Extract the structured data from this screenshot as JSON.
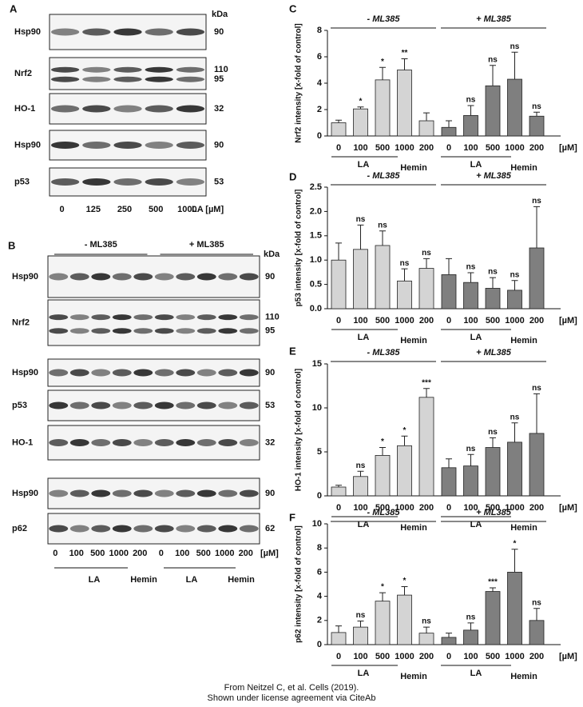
{
  "blots": [
    {
      "panel": "A",
      "kda": "kDa",
      "rows": [
        {
          "label": "Hsp90",
          "kda": [
            "90"
          ]
        },
        {
          "label": "Nrf2",
          "kda": [
            "110",
            "95"
          ]
        },
        {
          "label": "HO-1",
          "kda": [
            "32"
          ]
        },
        {
          "label": "Hsp90",
          "kda": [
            "90"
          ]
        },
        {
          "label": "p53",
          "kda": [
            "53"
          ]
        }
      ],
      "lanes": [
        "0",
        "125",
        "250",
        "500",
        "1000"
      ],
      "unit": "LA [µM]"
    },
    {
      "panel": "B",
      "kda": "kDa",
      "groups": [
        "- ML385",
        "+ ML385"
      ],
      "rows": [
        {
          "label": "Hsp90",
          "kda": [
            "90"
          ]
        },
        {
          "label": "Nrf2",
          "kda": [
            "110",
            "95"
          ]
        },
        {
          "label": "Hsp90",
          "kda": [
            "90"
          ]
        },
        {
          "label": "p53",
          "kda": [
            "53"
          ]
        },
        {
          "label": "HO-1",
          "kda": [
            "32"
          ]
        },
        {
          "label": "Hsp90",
          "kda": [
            "90"
          ]
        },
        {
          "label": "p62",
          "kda": [
            "62"
          ]
        }
      ],
      "lanes": [
        "0",
        "100",
        "500",
        "1000",
        "200",
        "0",
        "100",
        "500",
        "1000",
        "200"
      ],
      "unit": "[µM]",
      "x_groups": [
        "LA",
        "Hemin",
        "LA",
        "Hemin"
      ]
    }
  ],
  "chart_data": [
    {
      "type": "bar",
      "panel": "C",
      "ylabel": "Nrf2 intensity [x-fold of control]",
      "ylim": [
        0,
        8
      ],
      "yticks": [
        0,
        2,
        4,
        6,
        8
      ],
      "categories": [
        "0",
        "100",
        "500",
        "1000",
        "200"
      ],
      "unit": "[µM]",
      "x_groups": [
        "LA",
        "Hemin",
        "LA",
        "Hemin"
      ],
      "series": [
        {
          "name": "- ML385",
          "color": "#d4d4d4",
          "values": [
            1.0,
            2.05,
            4.25,
            5.0,
            1.15
          ],
          "errors": [
            0.2,
            0.15,
            0.95,
            0.85,
            0.6
          ],
          "annotations": [
            null,
            "*",
            "*",
            "**",
            null
          ]
        },
        {
          "name": "+ ML385",
          "color": "#7f7f7f",
          "values": [
            0.65,
            1.55,
            3.8,
            4.3,
            1.5
          ],
          "errors": [
            0.5,
            0.75,
            1.55,
            2.05,
            0.3
          ],
          "annotations": [
            null,
            "ns",
            "ns",
            "ns",
            "ns"
          ]
        }
      ]
    },
    {
      "type": "bar",
      "panel": "D",
      "ylabel": "p53 intensity [x-fold of control]",
      "ylim": [
        0,
        2.5
      ],
      "yticks": [
        {
          "value": 0,
          "label": "0.0"
        },
        {
          "value": 0.5,
          "label": "0.5"
        },
        {
          "value": 1,
          "label": "1.0"
        },
        {
          "value": 1.5,
          "label": "1.5"
        },
        {
          "value": 2,
          "label": "2.0"
        },
        {
          "value": 2.5,
          "label": "2.5"
        }
      ],
      "categories": [
        "0",
        "100",
        "500",
        "1000",
        "200"
      ],
      "unit": "[µM]",
      "x_groups": [
        "LA",
        "Hemin",
        "LA",
        "Hemin"
      ],
      "series": [
        {
          "name": "- ML385",
          "color": "#d4d4d4",
          "values": [
            1.0,
            1.22,
            1.3,
            0.57,
            0.83
          ],
          "errors": [
            0.35,
            0.5,
            0.3,
            0.25,
            0.2
          ],
          "annotations": [
            null,
            "ns",
            "ns",
            "ns",
            "ns"
          ]
        },
        {
          "name": "+ ML385",
          "color": "#7f7f7f",
          "values": [
            0.7,
            0.54,
            0.42,
            0.38,
            1.25
          ],
          "errors": [
            0.33,
            0.2,
            0.22,
            0.2,
            0.85
          ],
          "annotations": [
            null,
            "ns",
            "ns",
            "ns",
            "ns"
          ]
        }
      ]
    },
    {
      "type": "bar",
      "panel": "E",
      "ylabel": "HO-1 intensity [x-fold of control]",
      "ylim": [
        0,
        15
      ],
      "yticks": [
        0,
        5,
        10,
        15
      ],
      "categories": [
        "0",
        "100",
        "500",
        "1000",
        "200"
      ],
      "unit": "[µM]",
      "x_groups": [
        "LA",
        "Hemin",
        "LA",
        "Hemin"
      ],
      "series": [
        {
          "name": "- ML385",
          "color": "#d4d4d4",
          "values": [
            1.0,
            2.2,
            4.6,
            5.7,
            11.2
          ],
          "errors": [
            0.2,
            0.6,
            0.9,
            1.1,
            1.0
          ],
          "annotations": [
            null,
            "ns",
            "*",
            "*",
            "***"
          ]
        },
        {
          "name": "+ ML385",
          "color": "#7f7f7f",
          "values": [
            3.2,
            3.4,
            5.5,
            6.1,
            7.1
          ],
          "errors": [
            1.0,
            1.3,
            1.1,
            2.2,
            4.5
          ],
          "annotations": [
            null,
            "ns",
            "ns",
            "ns",
            "ns"
          ]
        }
      ]
    },
    {
      "type": "bar",
      "panel": "F",
      "ylabel": "p62 intensity [x-fold of control]",
      "ylim": [
        0,
        10
      ],
      "yticks": [
        0,
        2,
        4,
        6,
        8,
        10
      ],
      "categories": [
        "0",
        "100",
        "500",
        "1000",
        "200"
      ],
      "unit": "[µM]",
      "x_groups": [
        "LA",
        "Hemin",
        "LA",
        "Hemin"
      ],
      "series": [
        {
          "name": "- ML385",
          "color": "#d4d4d4",
          "values": [
            1.0,
            1.45,
            3.6,
            4.1,
            0.95
          ],
          "errors": [
            0.55,
            0.5,
            0.7,
            0.7,
            0.5
          ],
          "annotations": [
            null,
            "ns",
            "*",
            "*",
            "ns"
          ]
        },
        {
          "name": "+ ML385",
          "color": "#7f7f7f",
          "values": [
            0.6,
            1.2,
            4.4,
            6.0,
            2.0
          ],
          "errors": [
            0.35,
            0.6,
            0.3,
            1.9,
            1.0
          ],
          "annotations": [
            null,
            "ns",
            "***",
            "*",
            "ns"
          ]
        }
      ]
    }
  ],
  "footer": [
    "From Neitzel C, et al. Cells (2019).",
    "Shown under license agreement via CiteAb"
  ]
}
